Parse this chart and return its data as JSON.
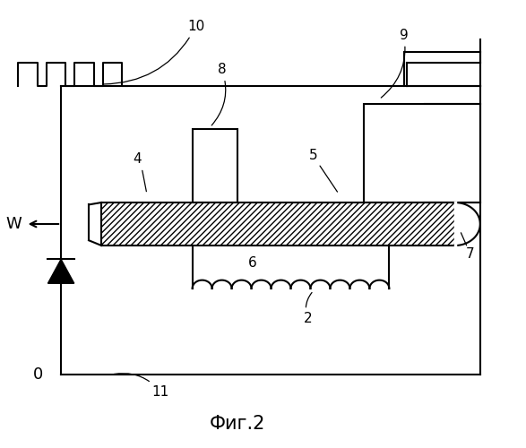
{
  "title": "Фиг.2",
  "bg_color": "#ffffff",
  "line_color": "#000000",
  "label_10": "10",
  "label_8": "8",
  "label_9": "9",
  "label_4": "4",
  "label_5": "5",
  "label_6": "6",
  "label_7": "7",
  "label_2": "2",
  "label_W": "W",
  "label_11": "11",
  "label_o": "0",
  "fig_width": 5.87,
  "fig_height": 5.0,
  "dpi": 100
}
